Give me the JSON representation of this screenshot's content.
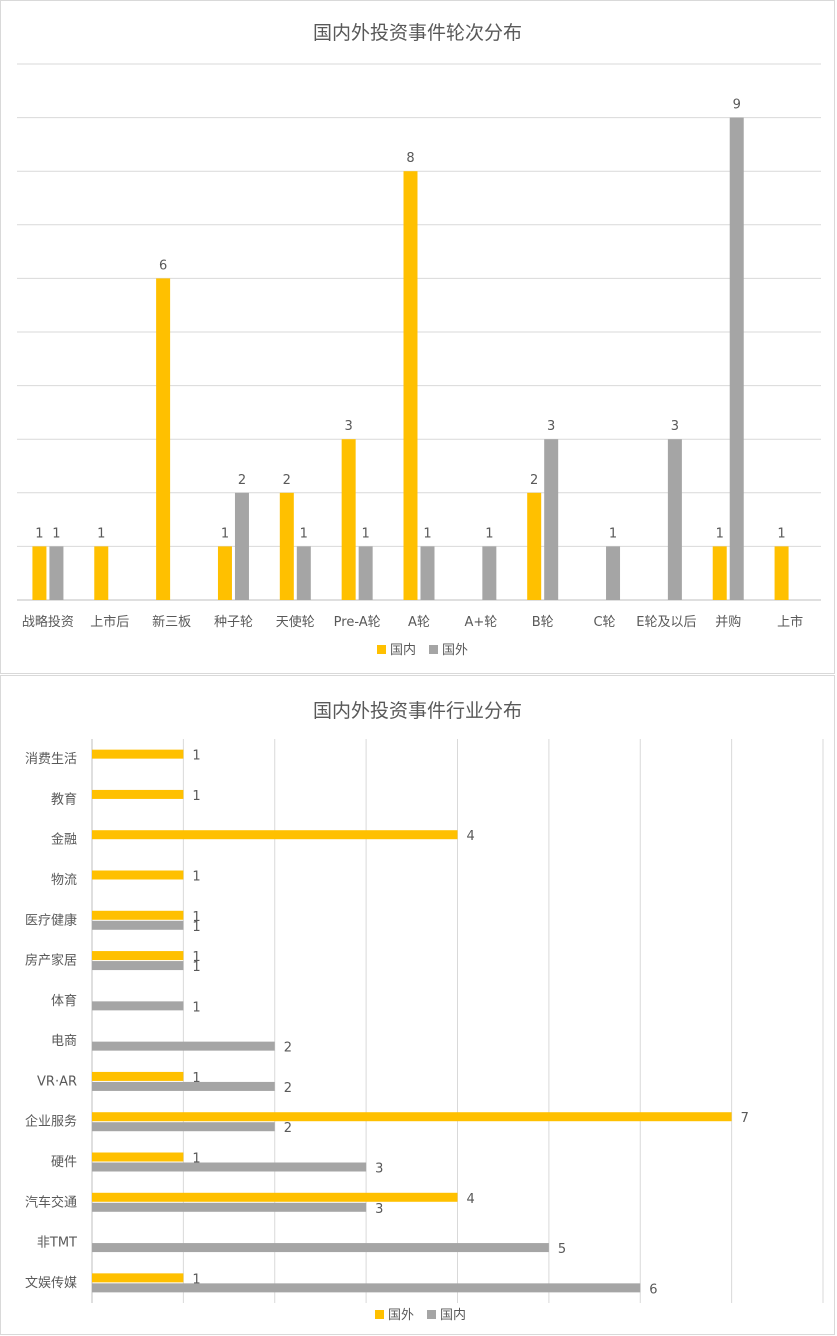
{
  "colors": {
    "yellow": "#FFC000",
    "gray": "#A5A5A5",
    "grid": "#D9D9D9",
    "text": "#595959"
  },
  "chart_data": [
    {
      "type": "bar",
      "title": "国内外投资事件轮次分布",
      "categories": [
        "战略投资",
        "上市后",
        "新三板",
        "种子轮",
        "天使轮",
        "Pre-A轮",
        "A轮",
        "A+轮",
        "B轮",
        "C轮",
        "E轮及以后",
        "并购",
        "上市"
      ],
      "series": [
        {
          "name": "国内",
          "color": "#FFC000",
          "values": [
            1,
            1,
            6,
            1,
            2,
            3,
            8,
            null,
            2,
            null,
            null,
            1,
            1
          ]
        },
        {
          "name": "国外",
          "color": "#A5A5A5",
          "values": [
            1,
            null,
            null,
            2,
            1,
            1,
            1,
            1,
            3,
            1,
            3,
            9,
            null
          ]
        }
      ],
      "ylim": [
        0,
        10
      ],
      "grid": true,
      "legend": "bottom"
    },
    {
      "type": "bar",
      "orientation": "horizontal",
      "title": "国内外投资事件行业分布",
      "categories": [
        "消费生活",
        "教育",
        "金融",
        "物流",
        "医疗健康",
        "房产家居",
        "体育",
        "电商",
        "VR·AR",
        "企业服务",
        "硬件",
        "汽车交通",
        "非TMT",
        "文娱传媒"
      ],
      "series": [
        {
          "name": "国外",
          "color": "#FFC000",
          "values": [
            1,
            1,
            4,
            1,
            1,
            1,
            null,
            null,
            1,
            7,
            1,
            4,
            null,
            1
          ]
        },
        {
          "name": "国内",
          "color": "#A5A5A5",
          "values": [
            null,
            null,
            null,
            null,
            1,
            1,
            1,
            2,
            2,
            2,
            3,
            3,
            5,
            6
          ]
        }
      ],
      "xlim": [
        0,
        8
      ],
      "grid": true,
      "legend": "bottom"
    }
  ]
}
